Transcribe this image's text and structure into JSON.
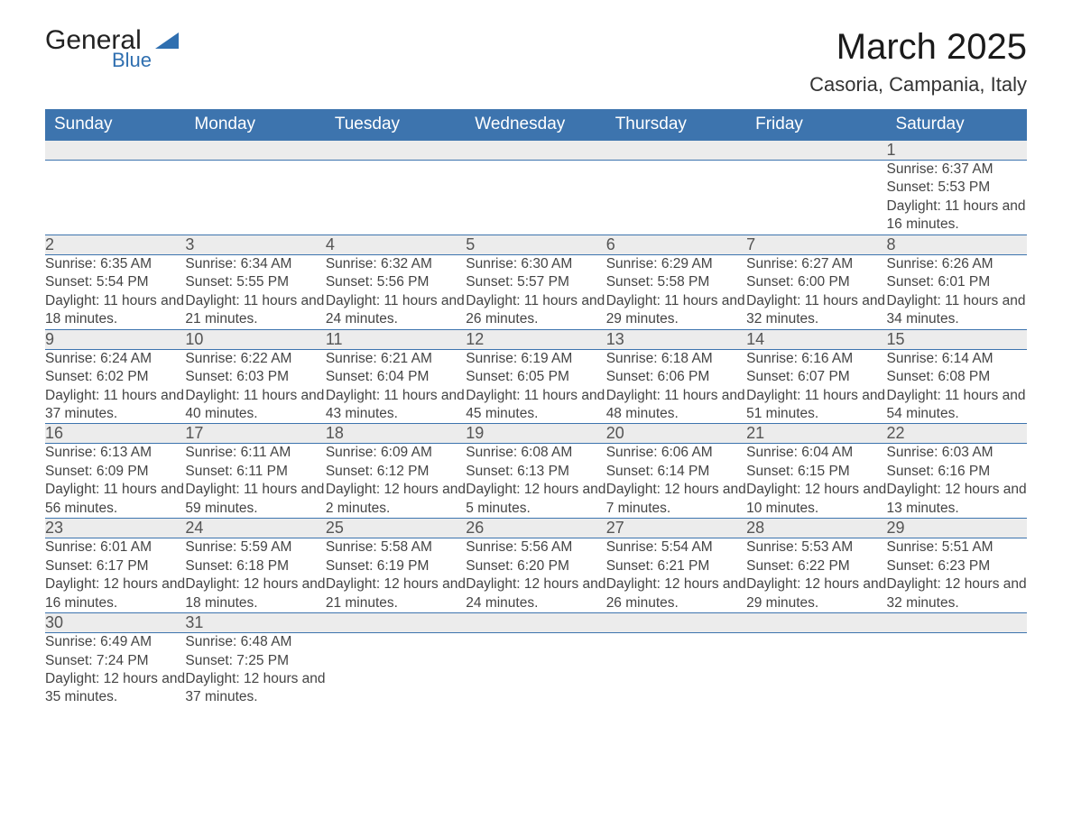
{
  "logo": {
    "text1": "General",
    "text2": "Blue"
  },
  "title": "March 2025",
  "subtitle": "Casoria, Campania, Italy",
  "colors": {
    "header_bg": "#3d74ae",
    "header_fg": "#ffffff",
    "daynum_bg": "#ececec",
    "border": "#3d74ae",
    "text": "#444444",
    "bg": "#ffffff"
  },
  "weekdays": [
    "Sunday",
    "Monday",
    "Tuesday",
    "Wednesday",
    "Thursday",
    "Friday",
    "Saturday"
  ],
  "weeks": [
    [
      null,
      null,
      null,
      null,
      null,
      null,
      {
        "d": "1",
        "sunrise": "6:37 AM",
        "sunset": "5:53 PM",
        "daylight": "11 hours and 16 minutes."
      }
    ],
    [
      {
        "d": "2",
        "sunrise": "6:35 AM",
        "sunset": "5:54 PM",
        "daylight": "11 hours and 18 minutes."
      },
      {
        "d": "3",
        "sunrise": "6:34 AM",
        "sunset": "5:55 PM",
        "daylight": "11 hours and 21 minutes."
      },
      {
        "d": "4",
        "sunrise": "6:32 AM",
        "sunset": "5:56 PM",
        "daylight": "11 hours and 24 minutes."
      },
      {
        "d": "5",
        "sunrise": "6:30 AM",
        "sunset": "5:57 PM",
        "daylight": "11 hours and 26 minutes."
      },
      {
        "d": "6",
        "sunrise": "6:29 AM",
        "sunset": "5:58 PM",
        "daylight": "11 hours and 29 minutes."
      },
      {
        "d": "7",
        "sunrise": "6:27 AM",
        "sunset": "6:00 PM",
        "daylight": "11 hours and 32 minutes."
      },
      {
        "d": "8",
        "sunrise": "6:26 AM",
        "sunset": "6:01 PM",
        "daylight": "11 hours and 34 minutes."
      }
    ],
    [
      {
        "d": "9",
        "sunrise": "6:24 AM",
        "sunset": "6:02 PM",
        "daylight": "11 hours and 37 minutes."
      },
      {
        "d": "10",
        "sunrise": "6:22 AM",
        "sunset": "6:03 PM",
        "daylight": "11 hours and 40 minutes."
      },
      {
        "d": "11",
        "sunrise": "6:21 AM",
        "sunset": "6:04 PM",
        "daylight": "11 hours and 43 minutes."
      },
      {
        "d": "12",
        "sunrise": "6:19 AM",
        "sunset": "6:05 PM",
        "daylight": "11 hours and 45 minutes."
      },
      {
        "d": "13",
        "sunrise": "6:18 AM",
        "sunset": "6:06 PM",
        "daylight": "11 hours and 48 minutes."
      },
      {
        "d": "14",
        "sunrise": "6:16 AM",
        "sunset": "6:07 PM",
        "daylight": "11 hours and 51 minutes."
      },
      {
        "d": "15",
        "sunrise": "6:14 AM",
        "sunset": "6:08 PM",
        "daylight": "11 hours and 54 minutes."
      }
    ],
    [
      {
        "d": "16",
        "sunrise": "6:13 AM",
        "sunset": "6:09 PM",
        "daylight": "11 hours and 56 minutes."
      },
      {
        "d": "17",
        "sunrise": "6:11 AM",
        "sunset": "6:11 PM",
        "daylight": "11 hours and 59 minutes."
      },
      {
        "d": "18",
        "sunrise": "6:09 AM",
        "sunset": "6:12 PM",
        "daylight": "12 hours and 2 minutes."
      },
      {
        "d": "19",
        "sunrise": "6:08 AM",
        "sunset": "6:13 PM",
        "daylight": "12 hours and 5 minutes."
      },
      {
        "d": "20",
        "sunrise": "6:06 AM",
        "sunset": "6:14 PM",
        "daylight": "12 hours and 7 minutes."
      },
      {
        "d": "21",
        "sunrise": "6:04 AM",
        "sunset": "6:15 PM",
        "daylight": "12 hours and 10 minutes."
      },
      {
        "d": "22",
        "sunrise": "6:03 AM",
        "sunset": "6:16 PM",
        "daylight": "12 hours and 13 minutes."
      }
    ],
    [
      {
        "d": "23",
        "sunrise": "6:01 AM",
        "sunset": "6:17 PM",
        "daylight": "12 hours and 16 minutes."
      },
      {
        "d": "24",
        "sunrise": "5:59 AM",
        "sunset": "6:18 PM",
        "daylight": "12 hours and 18 minutes."
      },
      {
        "d": "25",
        "sunrise": "5:58 AM",
        "sunset": "6:19 PM",
        "daylight": "12 hours and 21 minutes."
      },
      {
        "d": "26",
        "sunrise": "5:56 AM",
        "sunset": "6:20 PM",
        "daylight": "12 hours and 24 minutes."
      },
      {
        "d": "27",
        "sunrise": "5:54 AM",
        "sunset": "6:21 PM",
        "daylight": "12 hours and 26 minutes."
      },
      {
        "d": "28",
        "sunrise": "5:53 AM",
        "sunset": "6:22 PM",
        "daylight": "12 hours and 29 minutes."
      },
      {
        "d": "29",
        "sunrise": "5:51 AM",
        "sunset": "6:23 PM",
        "daylight": "12 hours and 32 minutes."
      }
    ],
    [
      {
        "d": "30",
        "sunrise": "6:49 AM",
        "sunset": "7:24 PM",
        "daylight": "12 hours and 35 minutes."
      },
      {
        "d": "31",
        "sunrise": "6:48 AM",
        "sunset": "7:25 PM",
        "daylight": "12 hours and 37 minutes."
      },
      null,
      null,
      null,
      null,
      null
    ]
  ],
  "labels": {
    "sunrise": "Sunrise: ",
    "sunset": "Sunset: ",
    "daylight": "Daylight: "
  }
}
